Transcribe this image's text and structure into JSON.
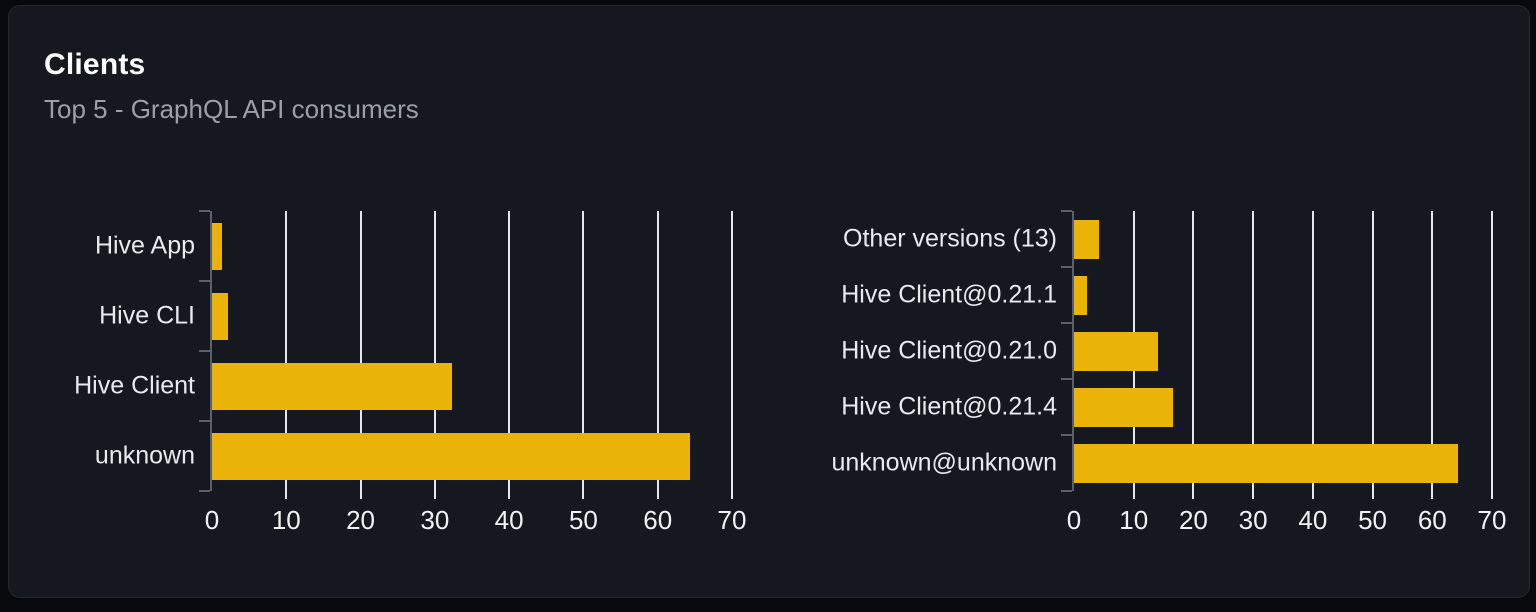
{
  "card": {
    "title": "Clients",
    "subtitle": "Top 5 - GraphQL API consumers"
  },
  "colors": {
    "page_bg": "#08090c",
    "card_bg": "#15181e",
    "card_border": "#23272f",
    "bar": "#eab308",
    "gridline": "#e3e8f0",
    "axis": "#5b6069",
    "category_label": "#e8eaee",
    "tick_label": "#f0f2f5",
    "title": "#ffffff",
    "subtitle": "#99a0ab"
  },
  "chart_data": [
    {
      "type": "bar",
      "orientation": "horizontal",
      "name": "clients-by-name",
      "categories": [
        "Hive App",
        "Hive CLI",
        "Hive Client",
        "unknown"
      ],
      "values": [
        1.4,
        2.1,
        32.3,
        64.3
      ],
      "xlim": [
        0,
        70
      ],
      "xticks": [
        0,
        10,
        20,
        30,
        40,
        50,
        60,
        70
      ],
      "grid": true,
      "legend": false
    },
    {
      "type": "bar",
      "orientation": "horizontal",
      "name": "clients-by-version",
      "categories": [
        "Other versions (13)",
        "Hive Client@0.21.1",
        "Hive Client@0.21.0",
        "Hive Client@0.21.4",
        "unknown@unknown"
      ],
      "values": [
        4.2,
        2.2,
        14.0,
        16.6,
        64.3
      ],
      "xlim": [
        0,
        70
      ],
      "xticks": [
        0,
        10,
        20,
        30,
        40,
        50,
        60,
        70
      ],
      "grid": true,
      "legend": false
    }
  ]
}
